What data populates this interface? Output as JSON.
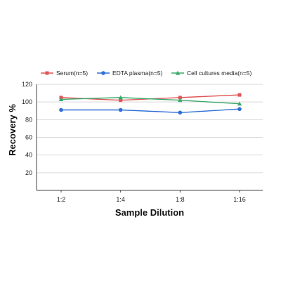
{
  "chart_data": {
    "type": "line",
    "categories": [
      "1:2",
      "1:4",
      "1:8",
      "1:16"
    ],
    "xlabel": "Sample Dilution",
    "ylabel": "Recovery %",
    "ylim": [
      0,
      120
    ],
    "yticks": [
      20,
      40,
      60,
      80,
      100,
      120
    ],
    "grid": true,
    "legend_position": "top",
    "series": [
      {
        "name": "Serum(n=5)",
        "values": [
          105,
          102,
          105,
          108
        ],
        "color": "#e05555",
        "marker": "square"
      },
      {
        "name": "EDTA plasma(n=5)",
        "values": [
          91,
          91,
          88,
          92
        ],
        "color": "#2f6fd6",
        "marker": "circle"
      },
      {
        "name": "Cell cultures media(n=5)",
        "values": [
          103,
          105,
          102,
          98
        ],
        "color": "#3aa86b",
        "marker": "triangle"
      }
    ]
  }
}
